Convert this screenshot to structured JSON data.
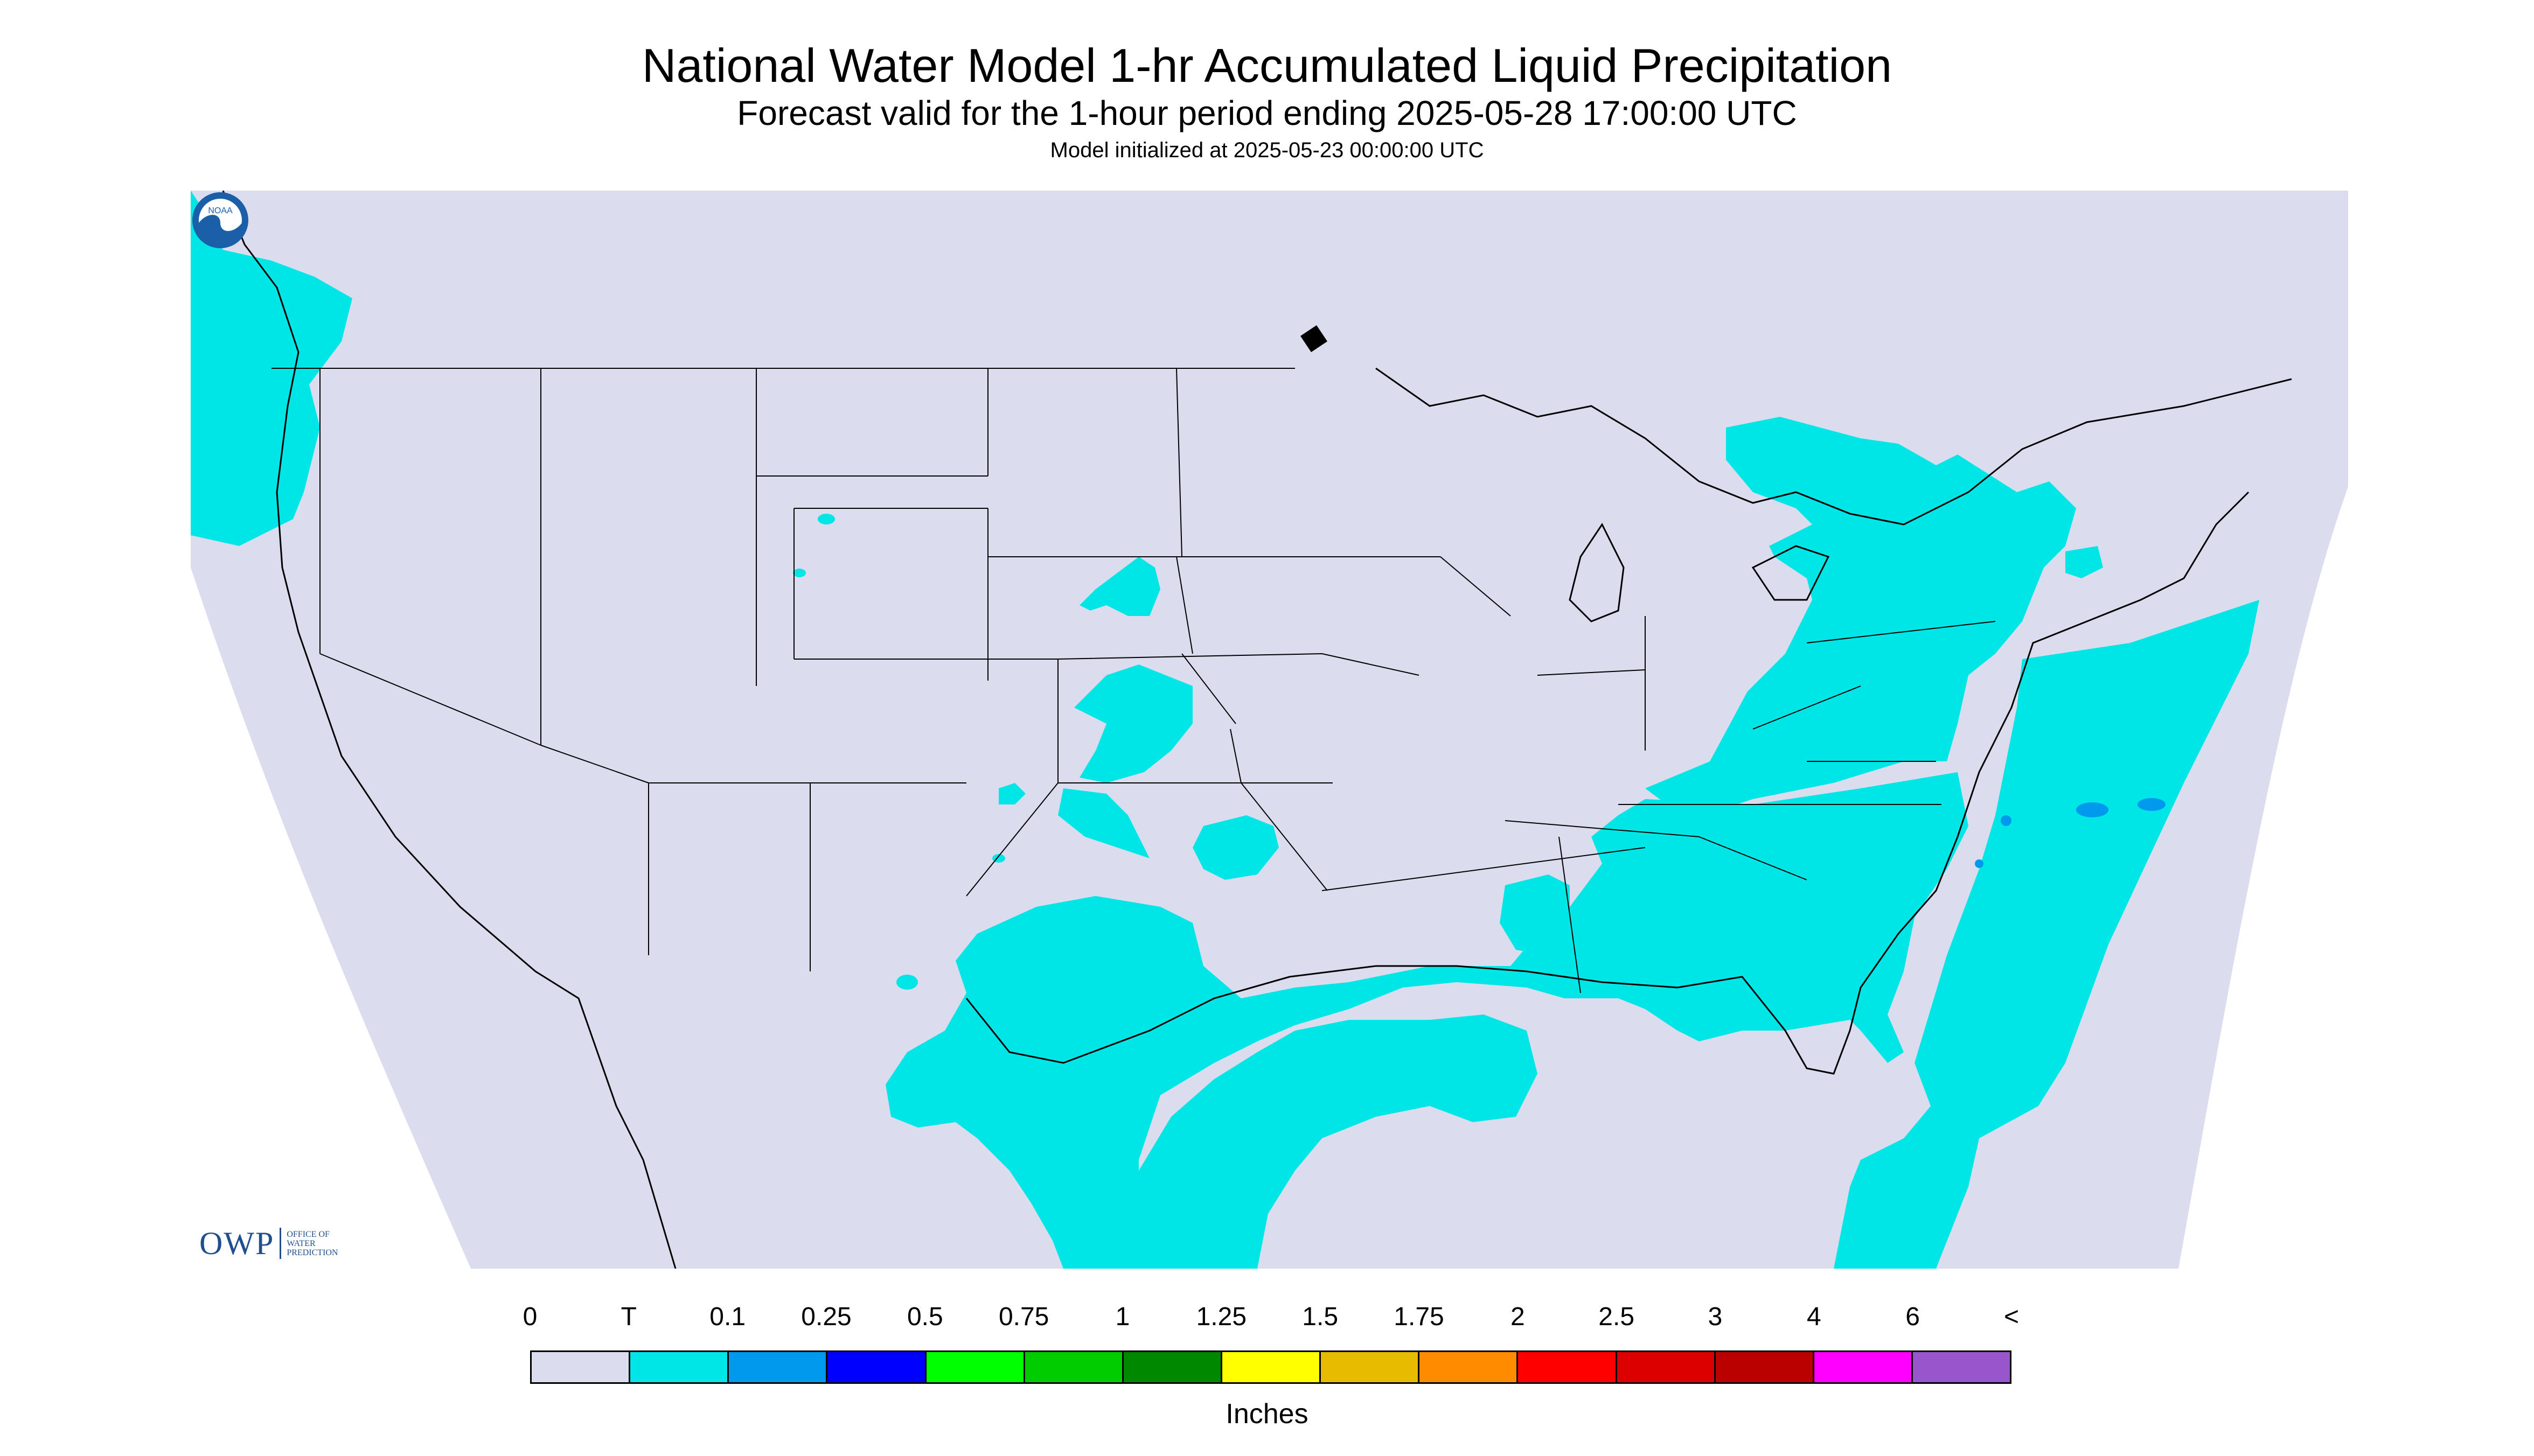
{
  "title": "National Water Model 1-hr Accumulated Liquid Precipitation",
  "subtitle": "Forecast valid for the 1-hour period ending 2025-05-28 17:00:00 UTC",
  "init": "Model initialized at 2025-05-23 00:00:00 UTC",
  "logos": {
    "owp": "OWP",
    "owp_sub": [
      "OFFICE OF",
      "WATER",
      "PREDICTION"
    ],
    "noaa": "NOAA"
  },
  "colors": {
    "no_precip": "#dcdcef",
    "trace": "#00e6e6",
    "border": "#000000"
  },
  "legend": {
    "labels": [
      "0",
      "T",
      "0.1",
      "0.25",
      "0.5",
      "0.75",
      "1",
      "1.25",
      "1.5",
      "1.75",
      "2",
      "2.5",
      "3",
      "4",
      "6",
      "<"
    ],
    "colors": [
      "#dcdcef",
      "#00e5e5",
      "#0099ee",
      "#0000ff",
      "#00ff00",
      "#00cc00",
      "#008800",
      "#ffff00",
      "#e6bb00",
      "#ff8c00",
      "#ff0000",
      "#dd0000",
      "#bb0000",
      "#ff00ff",
      "#9955cc"
    ],
    "units": "Inches"
  }
}
